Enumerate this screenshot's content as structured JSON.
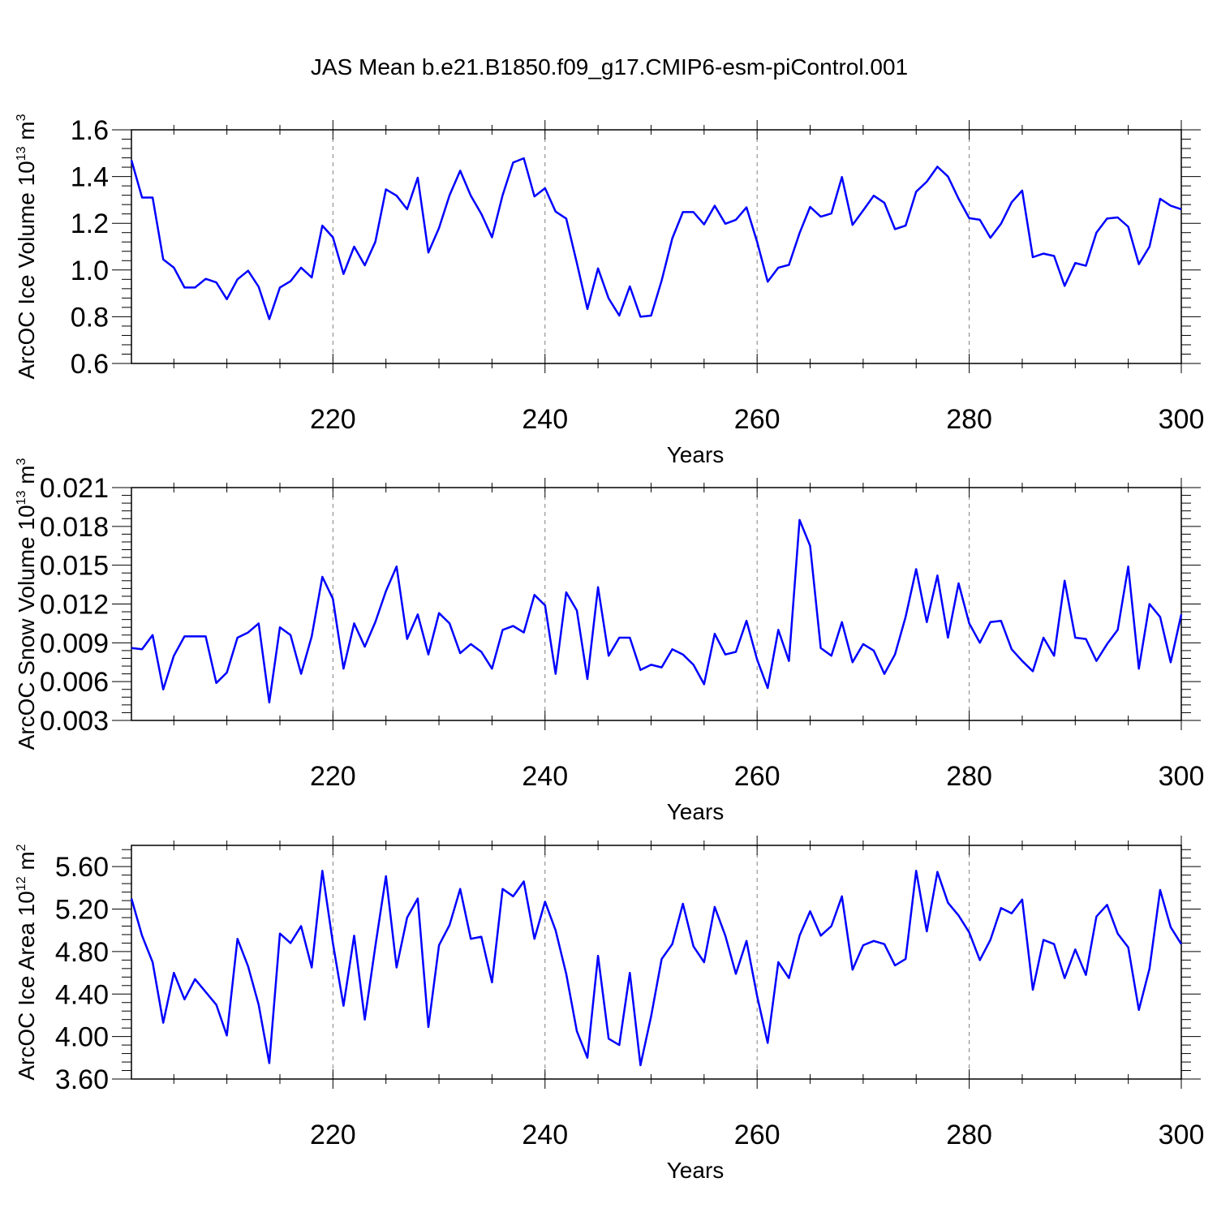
{
  "title": "JAS Mean b.e21.B1850.f09_g17.CMIP6-esm-piControl.001",
  "colors": {
    "series": "#0000ff",
    "axis": "#000000",
    "grid": "#808080"
  },
  "chart_data": [
    {
      "type": "line",
      "ylabel_main": "ArcOC Ice Volume 10",
      "ylabel_exp": "13",
      "ylabel_unit": " m",
      "ylabel_unit_exp": "3",
      "xlabel": "Years",
      "xlim": [
        201,
        300
      ],
      "ylim": [
        0.6,
        1.6
      ],
      "xticks": [
        220,
        240,
        260,
        280,
        300
      ],
      "xtick_labels": [
        "220",
        "240",
        "260",
        "280",
        "300"
      ],
      "yticks": [
        0.6,
        0.8,
        1.0,
        1.2,
        1.4,
        1.6
      ],
      "ytick_labels": [
        "0.6",
        "0.8",
        "1.0",
        "1.2",
        "1.4",
        "1.6"
      ],
      "grid": "vertical dashed at major x ticks",
      "x_start": 201,
      "values": [
        1.47,
        1.31,
        1.31,
        1.045,
        1.01,
        0.925,
        0.925,
        0.962,
        0.947,
        0.875,
        0.96,
        0.997,
        0.928,
        0.79,
        0.925,
        0.952,
        1.01,
        0.968,
        1.19,
        1.14,
        0.983,
        1.1,
        1.02,
        1.12,
        1.345,
        1.318,
        1.26,
        1.395,
        1.075,
        1.18,
        1.32,
        1.425,
        1.318,
        1.24,
        1.14,
        1.32,
        1.46,
        1.478,
        1.315,
        1.35,
        1.25,
        1.22,
        1.03,
        0.833,
        1.007,
        0.878,
        0.805,
        0.93,
        0.8,
        0.805,
        0.955,
        1.135,
        1.248,
        1.248,
        1.195,
        1.275,
        1.198,
        1.215,
        1.268,
        1.12,
        0.95,
        1.01,
        1.022,
        1.158,
        1.27,
        1.228,
        1.242,
        1.398,
        1.193,
        1.255,
        1.318,
        1.288,
        1.175,
        1.19,
        1.335,
        1.378,
        1.442,
        1.4,
        1.305,
        1.222,
        1.215,
        1.138,
        1.198,
        1.29,
        1.34,
        1.055,
        1.07,
        1.06,
        0.932,
        1.03,
        1.018,
        1.16,
        1.22,
        1.225,
        1.185,
        1.025,
        1.1,
        1.305,
        1.275,
        1.26
      ]
    },
    {
      "type": "line",
      "ylabel_main": "ArcOC Snow Volume 10",
      "ylabel_exp": "13",
      "ylabel_unit": " m",
      "ylabel_unit_exp": "3",
      "xlabel": "Years",
      "xlim": [
        201,
        300
      ],
      "ylim": [
        0.003,
        0.021
      ],
      "xticks": [
        220,
        240,
        260,
        280,
        300
      ],
      "xtick_labels": [
        "220",
        "240",
        "260",
        "280",
        "300"
      ],
      "yticks": [
        0.003,
        0.006,
        0.009,
        0.012,
        0.015,
        0.018,
        0.021
      ],
      "ytick_labels": [
        "0.003",
        "0.006",
        "0.009",
        "0.012",
        "0.015",
        "0.018",
        "0.021"
      ],
      "grid": "vertical dashed at major x ticks",
      "x_start": 201,
      "values": [
        0.0086,
        0.0085,
        0.0096,
        0.0054,
        0.008,
        0.0095,
        0.0095,
        0.0095,
        0.0059,
        0.0067,
        0.0094,
        0.0098,
        0.0105,
        0.0044,
        0.0102,
        0.0096,
        0.0066,
        0.0095,
        0.0141,
        0.0124,
        0.007,
        0.0105,
        0.0087,
        0.0106,
        0.013,
        0.0149,
        0.0093,
        0.0112,
        0.0081,
        0.0113,
        0.0105,
        0.0082,
        0.0089,
        0.0083,
        0.007,
        0.01,
        0.0103,
        0.0098,
        0.0127,
        0.0119,
        0.0066,
        0.0129,
        0.0115,
        0.0062,
        0.0133,
        0.008,
        0.0094,
        0.0094,
        0.0069,
        0.0073,
        0.0071,
        0.0085,
        0.0081,
        0.0073,
        0.0058,
        0.0097,
        0.0081,
        0.0083,
        0.0107,
        0.0077,
        0.0055,
        0.01,
        0.0076,
        0.0185,
        0.0165,
        0.0086,
        0.008,
        0.0106,
        0.0075,
        0.0089,
        0.0084,
        0.0066,
        0.0081,
        0.011,
        0.0147,
        0.0106,
        0.0142,
        0.0094,
        0.0136,
        0.0105,
        0.009,
        0.0106,
        0.0107,
        0.0085,
        0.0076,
        0.0068,
        0.0094,
        0.008,
        0.0138,
        0.0094,
        0.0093,
        0.0076,
        0.0089,
        0.01,
        0.0149,
        0.007,
        0.012,
        0.011,
        0.0075,
        0.0112
      ]
    },
    {
      "type": "line",
      "ylabel_main": "ArcOC Ice Area 10",
      "ylabel_exp": "12",
      "ylabel_unit": " m",
      "ylabel_unit_exp": "2",
      "xlabel": "Years",
      "xlim": [
        201,
        300
      ],
      "ylim": [
        3.6,
        5.8
      ],
      "xticks": [
        220,
        240,
        260,
        280,
        300
      ],
      "xtick_labels": [
        "220",
        "240",
        "260",
        "280",
        "300"
      ],
      "yticks": [
        3.6,
        4.0,
        4.4,
        4.8,
        5.2,
        5.6
      ],
      "ytick_labels": [
        "3.60",
        "4.00",
        "4.40",
        "4.80",
        "5.20",
        "5.60"
      ],
      "grid": "vertical dashed at major x ticks",
      "x_start": 201,
      "values": [
        5.3,
        4.95,
        4.7,
        4.13,
        4.6,
        4.35,
        4.54,
        4.42,
        4.3,
        4.01,
        4.92,
        4.66,
        4.3,
        3.75,
        4.97,
        4.88,
        5.04,
        4.65,
        5.56,
        4.88,
        4.29,
        4.95,
        4.16,
        4.85,
        5.51,
        4.65,
        5.12,
        5.3,
        4.09,
        4.86,
        5.05,
        5.39,
        4.92,
        4.94,
        4.51,
        5.39,
        5.32,
        5.46,
        4.92,
        5.27,
        5.0,
        4.59,
        4.05,
        3.8,
        4.76,
        3.98,
        3.92,
        4.6,
        3.73,
        4.19,
        4.73,
        4.87,
        5.25,
        4.85,
        4.7,
        5.22,
        4.95,
        4.59,
        4.9,
        4.38,
        3.94,
        4.7,
        4.55,
        4.95,
        5.18,
        4.95,
        5.04,
        5.32,
        4.63,
        4.86,
        4.9,
        4.87,
        4.67,
        4.73,
        5.56,
        4.99,
        5.55,
        5.26,
        5.14,
        4.98,
        4.72,
        4.91,
        5.21,
        5.16,
        5.29,
        4.44,
        4.91,
        4.87,
        4.55,
        4.82,
        4.58,
        5.13,
        5.24,
        4.97,
        4.84,
        4.25,
        4.64,
        5.38,
        5.03,
        4.87
      ]
    }
  ]
}
